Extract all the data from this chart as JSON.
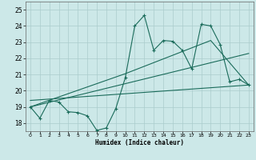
{
  "xlabel": "Humidex (Indice chaleur)",
  "background_color": "#cce8e8",
  "grid_color": "#aacccc",
  "line_color": "#1a6b5a",
  "xlim": [
    -0.5,
    23.5
  ],
  "ylim": [
    17.5,
    25.5
  ],
  "yticks": [
    18,
    19,
    20,
    21,
    22,
    23,
    24,
    25
  ],
  "xticks": [
    0,
    1,
    2,
    3,
    4,
    5,
    6,
    7,
    8,
    9,
    10,
    11,
    12,
    13,
    14,
    15,
    16,
    17,
    18,
    19,
    20,
    21,
    22,
    23
  ],
  "series_main": {
    "x": [
      0,
      1,
      2,
      3,
      4,
      5,
      6,
      7,
      8,
      9,
      10,
      11,
      12,
      13,
      14,
      15,
      16,
      17,
      18,
      19,
      20,
      21,
      22,
      23
    ],
    "y": [
      19.0,
      18.3,
      19.4,
      19.3,
      18.7,
      18.65,
      18.45,
      17.55,
      17.7,
      18.9,
      20.8,
      24.0,
      24.65,
      22.5,
      23.1,
      23.05,
      22.5,
      21.35,
      24.1,
      24.0,
      22.85,
      20.55,
      20.7,
      20.35
    ]
  },
  "series_trend1": {
    "x": [
      0,
      23
    ],
    "y": [
      19.0,
      22.3
    ]
  },
  "series_trend2": {
    "x": [
      0,
      10,
      19,
      23
    ],
    "y": [
      19.0,
      21.05,
      23.1,
      20.35
    ]
  },
  "series_flat": {
    "x": [
      0,
      23
    ],
    "y": [
      19.4,
      20.35
    ]
  }
}
